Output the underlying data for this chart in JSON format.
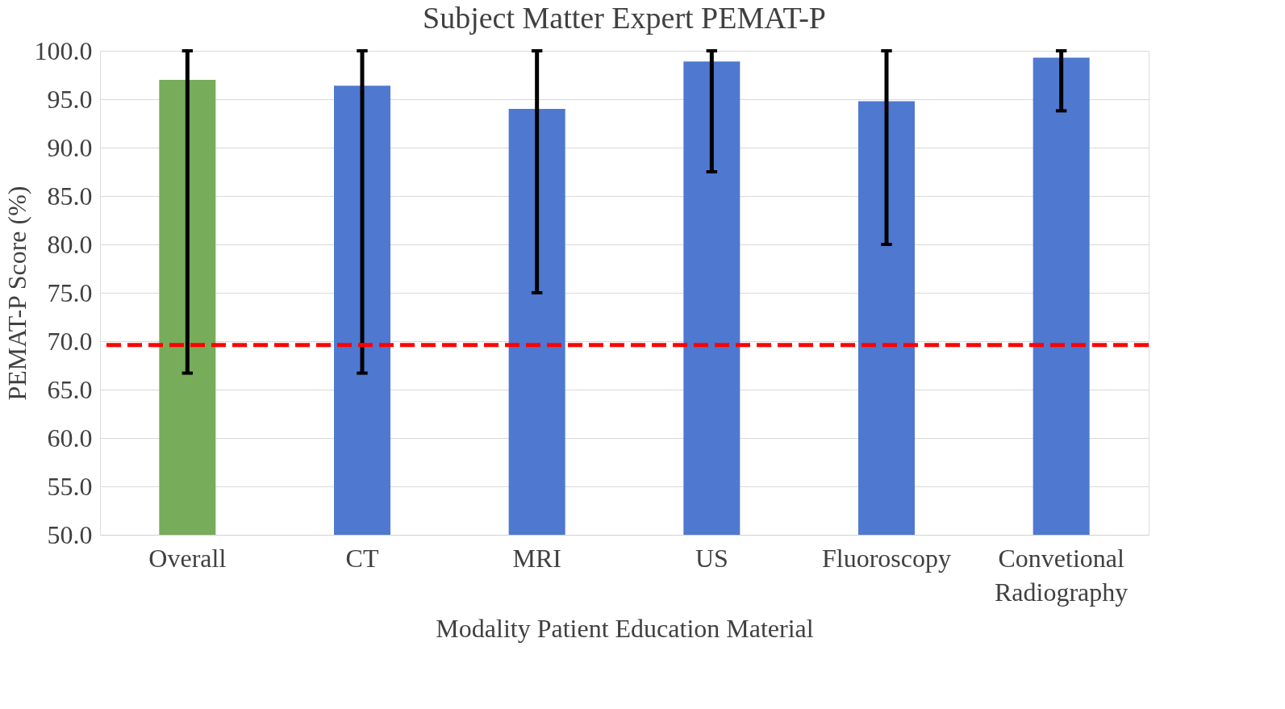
{
  "chart_data": {
    "type": "bar",
    "title": "Subject Matter Expert PEMAT-P",
    "xlabel": "Modality Patient Education Material",
    "ylabel": "PEMAT-P Score (%)",
    "categories": [
      "Overall",
      "CT",
      "MRI",
      "US",
      "Fluoroscopy",
      "Convetional Radiography"
    ],
    "values": [
      97.0,
      96.4,
      94.0,
      98.9,
      94.8,
      99.3
    ],
    "colors": [
      "#77ac5b",
      "#4f78d0",
      "#4f78d0",
      "#4f78d0",
      "#4f78d0",
      "#4f78d0"
    ],
    "errors": [
      [
        66.7,
        100.0
      ],
      [
        66.7,
        100.0
      ],
      [
        75.0,
        100.0
      ],
      [
        87.5,
        100.0
      ],
      [
        80.0,
        100.0
      ],
      [
        93.8,
        100.0
      ]
    ],
    "ylim": [
      50,
      100
    ],
    "yticks": [
      {
        "value": 50,
        "label": "50.0"
      },
      {
        "value": 55,
        "label": "55.0"
      },
      {
        "value": 60,
        "label": "60.0"
      },
      {
        "value": 65,
        "label": "65.0"
      },
      {
        "value": 70,
        "label": "70.0"
      },
      {
        "value": 75,
        "label": "75.0"
      },
      {
        "value": 80,
        "label": "80.0"
      },
      {
        "value": 85,
        "label": "85.0"
      },
      {
        "value": 90,
        "label": "90.0"
      },
      {
        "value": 95,
        "label": "95.0"
      },
      {
        "value": 100,
        "label": "100.0"
      }
    ],
    "ref_lines": [
      {
        "axis": "y",
        "value": 69.6,
        "color": "#ff0000",
        "line_style": "dashed"
      }
    ],
    "grid": "y",
    "legend": false
  }
}
